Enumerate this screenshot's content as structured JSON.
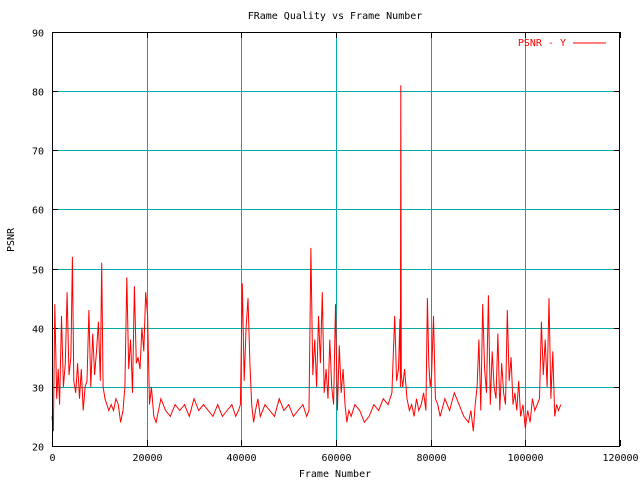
{
  "chart_data": {
    "type": "line",
    "title": "FRame Quality vs Frame Number",
    "xlabel": "Frame Number",
    "ylabel": "PSNR",
    "xlim": [
      0,
      120000
    ],
    "ylim": [
      20,
      90
    ],
    "xticks": [
      "0",
      "20000",
      "40000",
      "60000",
      "80000",
      "100000",
      "120000"
    ],
    "yticks": [
      "20",
      "30",
      "40",
      "50",
      "60",
      "70",
      "80",
      "90"
    ],
    "grid": true,
    "legend_position": "top-right",
    "series": [
      {
        "name": "PSNR - Y",
        "color": "#ff0000",
        "x": [
          0,
          300,
          600,
          1000,
          1300,
          1600,
          2000,
          2400,
          2800,
          3200,
          3600,
          4000,
          4300,
          4600,
          5000,
          5400,
          5800,
          6200,
          6600,
          7000,
          7400,
          7800,
          8200,
          8600,
          9000,
          9400,
          9800,
          10200,
          10500,
          10800,
          11200,
          11600,
          12000,
          12500,
          13000,
          13500,
          14000,
          14500,
          15000,
          15400,
          15800,
          16200,
          16600,
          17000,
          17400,
          17800,
          18200,
          18600,
          19000,
          19400,
          19800,
          20200,
          20600,
          21000,
          21500,
          22000,
          23000,
          24000,
          25000,
          26000,
          27000,
          28000,
          29000,
          30000,
          31000,
          32000,
          33000,
          34000,
          35000,
          36000,
          37000,
          38000,
          38800,
          39400,
          39800,
          40200,
          40600,
          41000,
          41400,
          41800,
          42200,
          42600,
          43000,
          43500,
          44000,
          45000,
          46000,
          47000,
          48000,
          49000,
          50000,
          51000,
          52000,
          53000,
          53800,
          54300,
          54700,
          55100,
          55500,
          55900,
          56300,
          56700,
          57100,
          57500,
          57900,
          58300,
          58700,
          59100,
          59500,
          59900,
          60300,
          60700,
          61100,
          61500,
          61900,
          62300,
          62700,
          63200,
          64000,
          65000,
          66000,
          67000,
          68000,
          69000,
          70000,
          71000,
          71800,
          72400,
          72800,
          73200,
          73500,
          73600,
          73700,
          73800,
          74100,
          74500,
          75000,
          75500,
          76000,
          76500,
          77000,
          77500,
          78000,
          78500,
          79000,
          79300,
          79600,
          79900,
          80200,
          80600,
          81000,
          81500,
          82000,
          83000,
          84000,
          85000,
          86000,
          87000,
          88000,
          88500,
          89000,
          89400,
          89800,
          90200,
          90600,
          91000,
          91400,
          91800,
          92200,
          92600,
          93000,
          93400,
          93800,
          94200,
          94600,
          95000,
          95400,
          95800,
          96200,
          96600,
          97000,
          97400,
          97800,
          98200,
          98600,
          99000,
          99500,
          100000,
          100500,
          101000,
          101500,
          102000,
          102500,
          103000,
          103400,
          103800,
          104200,
          104600,
          105000,
          105400,
          105800,
          106200,
          106600,
          107000,
          107500
        ],
        "y": [
          25,
          22.5,
          44,
          28,
          33,
          27,
          42,
          30,
          34,
          46,
          32,
          35,
          52,
          31,
          29,
          34,
          28,
          33,
          26,
          30,
          31,
          43,
          30,
          39,
          32,
          36,
          41,
          31,
          51,
          30,
          28,
          27,
          26,
          27,
          26,
          28,
          27,
          24,
          26,
          30,
          48.5,
          33,
          38,
          29,
          47,
          34,
          35,
          33,
          40,
          36,
          46,
          42,
          27,
          30,
          25,
          24,
          28,
          26,
          25,
          27,
          26,
          27,
          25,
          28,
          26,
          27,
          26,
          25,
          27,
          25,
          26,
          27,
          25,
          26,
          27,
          47.5,
          31,
          40,
          45,
          34,
          27,
          24,
          26,
          28,
          25,
          27,
          26,
          25,
          28,
          26,
          27,
          25,
          26,
          27,
          25,
          26,
          53.5,
          32,
          38,
          30,
          42,
          34,
          46,
          29,
          33,
          28,
          38,
          30,
          27,
          44,
          26,
          37,
          29,
          33,
          27,
          24,
          26,
          25,
          27,
          26,
          24,
          25,
          27,
          26,
          28,
          27,
          29,
          42,
          31,
          33,
          41.5,
          30,
          81,
          32,
          30,
          33,
          28,
          26,
          27,
          25,
          28,
          26,
          27,
          29,
          26,
          45,
          34,
          30,
          32,
          42,
          28,
          27,
          25,
          28,
          26,
          29,
          27,
          25,
          24,
          26,
          22.5,
          27,
          30,
          38,
          26,
          44,
          33,
          29,
          45.5,
          27,
          36,
          30,
          28,
          39,
          26,
          34,
          29,
          27,
          43,
          31,
          35,
          27,
          29,
          26,
          31,
          25,
          27,
          23,
          26,
          24,
          28,
          26,
          27,
          28,
          41,
          32,
          38,
          30,
          45,
          28,
          36,
          25,
          27,
          26,
          27
        ]
      }
    ]
  }
}
